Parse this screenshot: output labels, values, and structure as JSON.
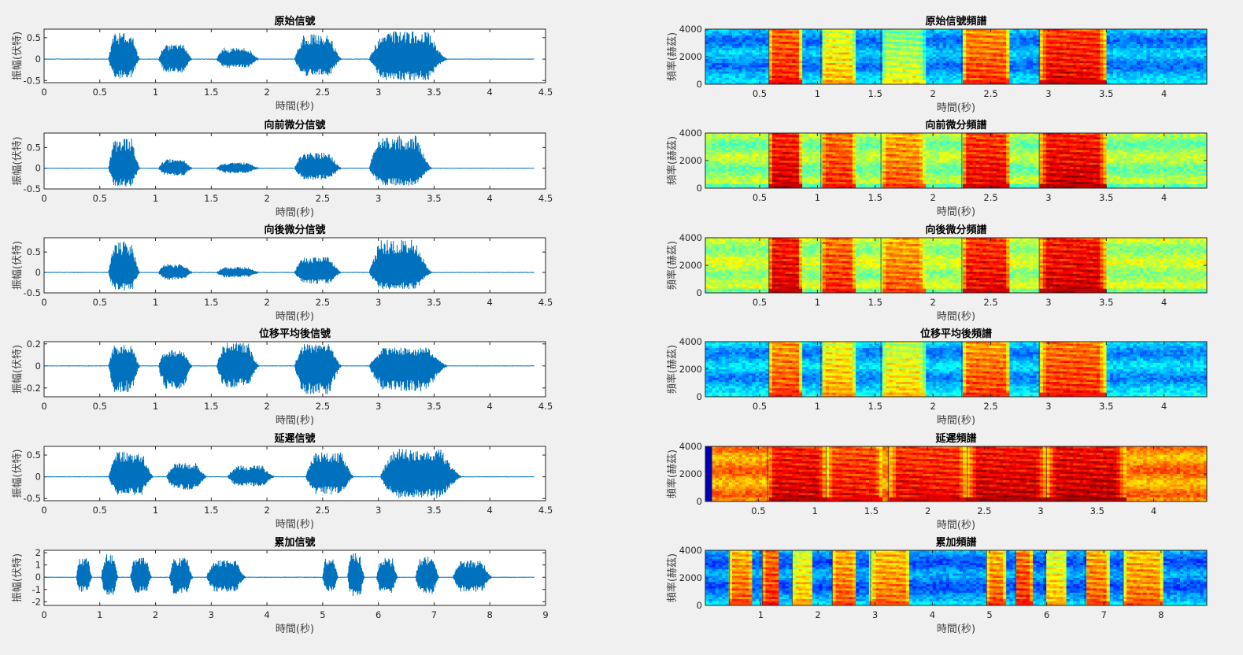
{
  "window": {
    "background": "#f0f0f0"
  },
  "colors": {
    "signal": "#0072bd",
    "axis": "#262626",
    "label": "#404040"
  },
  "chart_data": [
    {
      "type": "line",
      "title": "原始信號",
      "xlabel": "時間(秒)",
      "ylabel": "振幅(伏特)",
      "xlim": [
        0,
        4.5
      ],
      "xticks": [
        0,
        0.5,
        1,
        1.5,
        2,
        2.5,
        3,
        3.5,
        4,
        4.5
      ],
      "ylim": [
        -0.55,
        0.7
      ],
      "yticks": [
        -0.5,
        0,
        0.5
      ],
      "ytick_labels": [
        "-0.5",
        "0",
        "0.5"
      ],
      "signal_extent": [
        0,
        4.4
      ],
      "segments": [
        {
          "start": 0.58,
          "end": 0.86,
          "peak": 0.62,
          "low": -0.45
        },
        {
          "start": 1.03,
          "end": 1.33,
          "peak": 0.35,
          "low": -0.33
        },
        {
          "start": 1.55,
          "end": 1.93,
          "peak": 0.27,
          "low": -0.22
        },
        {
          "start": 2.25,
          "end": 2.67,
          "peak": 0.58,
          "low": -0.4
        },
        {
          "start": 2.92,
          "end": 3.62,
          "peak": 0.65,
          "low": -0.5
        }
      ]
    },
    {
      "type": "line",
      "title": "向前微分信號",
      "xlabel": "時間(秒)",
      "ylabel": "振幅(伏特)",
      "xlim": [
        0,
        4.5
      ],
      "xticks": [
        0,
        0.5,
        1,
        1.5,
        2,
        2.5,
        3,
        3.5,
        4,
        4.5
      ],
      "ylim": [
        -0.5,
        0.85
      ],
      "yticks": [
        -0.5,
        0,
        0.5
      ],
      "ytick_labels": [
        "-0.5",
        "0",
        "0.5"
      ],
      "signal_extent": [
        0,
        4.4
      ],
      "segments": [
        {
          "start": 0.58,
          "end": 0.86,
          "peak": 0.72,
          "low": -0.45
        },
        {
          "start": 1.03,
          "end": 1.33,
          "peak": 0.22,
          "low": -0.18
        },
        {
          "start": 1.55,
          "end": 1.93,
          "peak": 0.14,
          "low": -0.12
        },
        {
          "start": 2.25,
          "end": 2.67,
          "peak": 0.38,
          "low": -0.28
        },
        {
          "start": 2.92,
          "end": 3.48,
          "peak": 0.8,
          "low": -0.42
        }
      ]
    },
    {
      "type": "line",
      "title": "向後微分信號",
      "xlabel": "時間(秒)",
      "ylabel": "振幅(伏特)",
      "xlim": [
        0,
        4.5
      ],
      "xticks": [
        0,
        0.5,
        1,
        1.5,
        2,
        2.5,
        3,
        3.5,
        4,
        4.5
      ],
      "ylim": [
        -0.5,
        0.85
      ],
      "yticks": [
        -0.5,
        0,
        0.5
      ],
      "ytick_labels": [
        "-0.5",
        "0",
        "0.5"
      ],
      "signal_extent": [
        0,
        4.4
      ],
      "segments": [
        {
          "start": 0.58,
          "end": 0.86,
          "peak": 0.75,
          "low": -0.45
        },
        {
          "start": 1.03,
          "end": 1.33,
          "peak": 0.22,
          "low": -0.18
        },
        {
          "start": 1.55,
          "end": 1.93,
          "peak": 0.14,
          "low": -0.12
        },
        {
          "start": 2.25,
          "end": 2.67,
          "peak": 0.38,
          "low": -0.28
        },
        {
          "start": 2.92,
          "end": 3.48,
          "peak": 0.8,
          "low": -0.42
        }
      ]
    },
    {
      "type": "line",
      "title": "位移平均後信號",
      "xlabel": "時間(秒)",
      "ylabel": "振幅(伏特)",
      "xlim": [
        0,
        4.5
      ],
      "xticks": [
        0,
        0.5,
        1,
        1.5,
        2,
        2.5,
        3,
        3.5,
        4,
        4.5
      ],
      "ylim": [
        -0.28,
        0.22
      ],
      "yticks": [
        -0.2,
        0,
        0.2
      ],
      "ytick_labels": [
        "-0.2",
        "0",
        "0.2"
      ],
      "signal_extent": [
        0,
        4.4
      ],
      "segments": [
        {
          "start": 0.58,
          "end": 0.86,
          "peak": 0.19,
          "low": -0.24
        },
        {
          "start": 1.03,
          "end": 1.33,
          "peak": 0.15,
          "low": -0.22
        },
        {
          "start": 1.55,
          "end": 1.93,
          "peak": 0.21,
          "low": -0.2
        },
        {
          "start": 2.25,
          "end": 2.67,
          "peak": 0.2,
          "low": -0.26
        },
        {
          "start": 2.92,
          "end": 3.62,
          "peak": 0.17,
          "low": -0.23
        }
      ]
    },
    {
      "type": "line",
      "title": "延遲信號",
      "xlabel": "時間(秒)",
      "ylabel": "振幅(伏特)",
      "xlim": [
        0,
        4.5
      ],
      "xticks": [
        0,
        0.5,
        1,
        1.5,
        2,
        2.5,
        3,
        3.5,
        4,
        4.5
      ],
      "ylim": [
        -0.55,
        0.7
      ],
      "yticks": [
        -0.5,
        0,
        0.5
      ],
      "ytick_labels": [
        "-0.5",
        "0",
        "0.5"
      ],
      "signal_extent": [
        0,
        4.4
      ],
      "segments": [
        {
          "start": 0.58,
          "end": 0.98,
          "peak": 0.58,
          "low": -0.42
        },
        {
          "start": 1.1,
          "end": 1.46,
          "peak": 0.32,
          "low": -0.3
        },
        {
          "start": 1.65,
          "end": 2.07,
          "peak": 0.26,
          "low": -0.22
        },
        {
          "start": 2.35,
          "end": 2.78,
          "peak": 0.56,
          "low": -0.4
        },
        {
          "start": 3.02,
          "end": 3.75,
          "peak": 0.65,
          "low": -0.5
        }
      ]
    },
    {
      "type": "line",
      "title": "累加信號",
      "xlabel": "時間(秒)",
      "ylabel": "振幅(伏特)",
      "xlim": [
        0,
        9
      ],
      "xticks": [
        0,
        1,
        2,
        3,
        4,
        5,
        6,
        7,
        8,
        9
      ],
      "ylim": [
        -2.3,
        2.2
      ],
      "yticks": [
        -2,
        -1,
        0,
        1,
        2
      ],
      "ytick_labels": [
        "-2",
        "-1",
        "0",
        "1",
        "2"
      ],
      "signal_extent": [
        0,
        8.8
      ],
      "segments": [
        {
          "start": 0.58,
          "end": 0.86,
          "peak": 1.6,
          "low": -1.2
        },
        {
          "start": 1.03,
          "end": 1.33,
          "peak": 1.9,
          "low": -1.5
        },
        {
          "start": 1.55,
          "end": 1.93,
          "peak": 1.7,
          "low": -1.3
        },
        {
          "start": 2.25,
          "end": 2.67,
          "peak": 1.6,
          "low": -1.4
        },
        {
          "start": 2.92,
          "end": 3.62,
          "peak": 1.4,
          "low": -1.2
        },
        {
          "start": 5.0,
          "end": 5.28,
          "peak": 1.6,
          "low": -1.2
        },
        {
          "start": 5.45,
          "end": 5.75,
          "peak": 2.0,
          "low": -1.6
        },
        {
          "start": 5.97,
          "end": 6.35,
          "peak": 1.6,
          "low": -1.3
        },
        {
          "start": 6.67,
          "end": 7.09,
          "peak": 1.7,
          "low": -1.4
        },
        {
          "start": 7.34,
          "end": 8.04,
          "peak": 1.4,
          "low": -1.2
        }
      ]
    },
    {
      "type": "heatmap",
      "title": "原始信號頻譜",
      "xlabel": "時間(秒)",
      "ylabel": "頻率(赫茲)",
      "xlim": [
        0.03,
        4.37
      ],
      "xticks": [
        0.5,
        1,
        1.5,
        2,
        2.5,
        3,
        3.5,
        4
      ],
      "ylim": [
        0,
        4000
      ],
      "yticks": [
        0,
        2000,
        4000
      ],
      "colormap": "jet",
      "background_level": 0.28,
      "floor_level": 0.35,
      "bands": [
        {
          "start": 0.58,
          "end": 0.86,
          "level": 0.86
        },
        {
          "start": 1.03,
          "end": 1.33,
          "level": 0.7
        },
        {
          "start": 1.55,
          "end": 1.93,
          "level": 0.62
        },
        {
          "start": 2.25,
          "end": 2.67,
          "level": 0.83
        },
        {
          "start": 2.92,
          "end": 3.5,
          "level": 0.9
        }
      ]
    },
    {
      "type": "heatmap",
      "title": "向前微分頻譜",
      "xlabel": "時間(秒)",
      "ylabel": "頻率(赫茲)",
      "xlim": [
        0.03,
        4.37
      ],
      "xticks": [
        0.5,
        1,
        1.5,
        2,
        2.5,
        3,
        3.5,
        4
      ],
      "ylim": [
        0,
        4000
      ],
      "yticks": [
        0,
        2000,
        4000
      ],
      "colormap": "jet",
      "background_level": 0.52,
      "floor_level": 0.45,
      "bands": [
        {
          "start": 0.58,
          "end": 0.86,
          "level": 0.92
        },
        {
          "start": 1.03,
          "end": 1.33,
          "level": 0.85
        },
        {
          "start": 1.55,
          "end": 1.93,
          "level": 0.8
        },
        {
          "start": 2.25,
          "end": 2.67,
          "level": 0.9
        },
        {
          "start": 2.92,
          "end": 3.5,
          "level": 0.93
        }
      ]
    },
    {
      "type": "heatmap",
      "title": "向後微分頻譜",
      "xlabel": "時間(秒)",
      "ylabel": "頻率(赫茲)",
      "xlim": [
        0.03,
        4.37
      ],
      "xticks": [
        0.5,
        1,
        1.5,
        2,
        2.5,
        3,
        3.5,
        4
      ],
      "ylim": [
        0,
        4000
      ],
      "yticks": [
        0,
        2000,
        4000
      ],
      "colormap": "jet",
      "background_level": 0.55,
      "floor_level": 0.48,
      "bands": [
        {
          "start": 0.58,
          "end": 0.86,
          "level": 0.92
        },
        {
          "start": 1.03,
          "end": 1.33,
          "level": 0.85
        },
        {
          "start": 1.55,
          "end": 1.93,
          "level": 0.8
        },
        {
          "start": 2.25,
          "end": 2.67,
          "level": 0.9
        },
        {
          "start": 2.92,
          "end": 3.5,
          "level": 0.93
        }
      ]
    },
    {
      "type": "heatmap",
      "title": "位移平均後頻譜",
      "xlabel": "時間(秒)",
      "ylabel": "頻率(赫茲)",
      "xlim": [
        0.03,
        4.37
      ],
      "xticks": [
        0.5,
        1,
        1.5,
        2,
        2.5,
        3,
        3.5,
        4
      ],
      "ylim": [
        0,
        4000
      ],
      "yticks": [
        0,
        2000,
        4000
      ],
      "colormap": "jet",
      "background_level": 0.3,
      "floor_level": 0.38,
      "bands": [
        {
          "start": 0.58,
          "end": 0.86,
          "level": 0.82
        },
        {
          "start": 1.03,
          "end": 1.33,
          "level": 0.72
        },
        {
          "start": 1.55,
          "end": 1.93,
          "level": 0.68
        },
        {
          "start": 2.25,
          "end": 2.67,
          "level": 0.82
        },
        {
          "start": 2.92,
          "end": 3.5,
          "level": 0.85
        }
      ]
    },
    {
      "type": "heatmap",
      "title": "延遲頻譜",
      "xlabel": "時間(秒)",
      "ylabel": "頻率(赫茲)",
      "xlim": [
        0.03,
        4.47
      ],
      "xticks": [
        0.5,
        1,
        1.5,
        2,
        2.5,
        3,
        3.5,
        4
      ],
      "ylim": [
        0,
        4000
      ],
      "yticks": [
        0,
        2000,
        4000
      ],
      "colormap": "jet",
      "background_level": 0.74,
      "floor_level": 0.74,
      "leading_gap": [
        0.03,
        0.1
      ],
      "bands": [
        {
          "start": 0.58,
          "end": 1.1,
          "level": 0.93
        },
        {
          "start": 1.1,
          "end": 1.6,
          "level": 0.88
        },
        {
          "start": 1.65,
          "end": 2.35,
          "level": 0.9
        },
        {
          "start": 2.35,
          "end": 3.05,
          "level": 0.94
        },
        {
          "start": 3.05,
          "end": 3.75,
          "level": 0.95
        }
      ]
    },
    {
      "type": "heatmap",
      "title": "累加頻譜",
      "xlabel": "時間(秒)",
      "ylabel": "頻率(赫茲)",
      "xlim": [
        0.03,
        8.8
      ],
      "xticks": [
        1,
        2,
        3,
        4,
        5,
        6,
        7,
        8
      ],
      "ylim": [
        0,
        4000
      ],
      "yticks": [
        0,
        2000,
        4000
      ],
      "colormap": "jet",
      "background_level": 0.25,
      "floor_level": 0.35,
      "bands": [
        {
          "start": 0.45,
          "end": 0.86,
          "level": 0.8
        },
        {
          "start": 1.03,
          "end": 1.33,
          "level": 0.85
        },
        {
          "start": 1.55,
          "end": 1.93,
          "level": 0.7
        },
        {
          "start": 2.25,
          "end": 2.67,
          "level": 0.8
        },
        {
          "start": 2.92,
          "end": 3.62,
          "level": 0.78
        },
        {
          "start": 4.95,
          "end": 5.28,
          "level": 0.8
        },
        {
          "start": 5.45,
          "end": 5.75,
          "level": 0.85
        },
        {
          "start": 5.97,
          "end": 6.35,
          "level": 0.7
        },
        {
          "start": 6.67,
          "end": 7.09,
          "level": 0.8
        },
        {
          "start": 7.34,
          "end": 8.04,
          "level": 0.78
        }
      ]
    }
  ]
}
